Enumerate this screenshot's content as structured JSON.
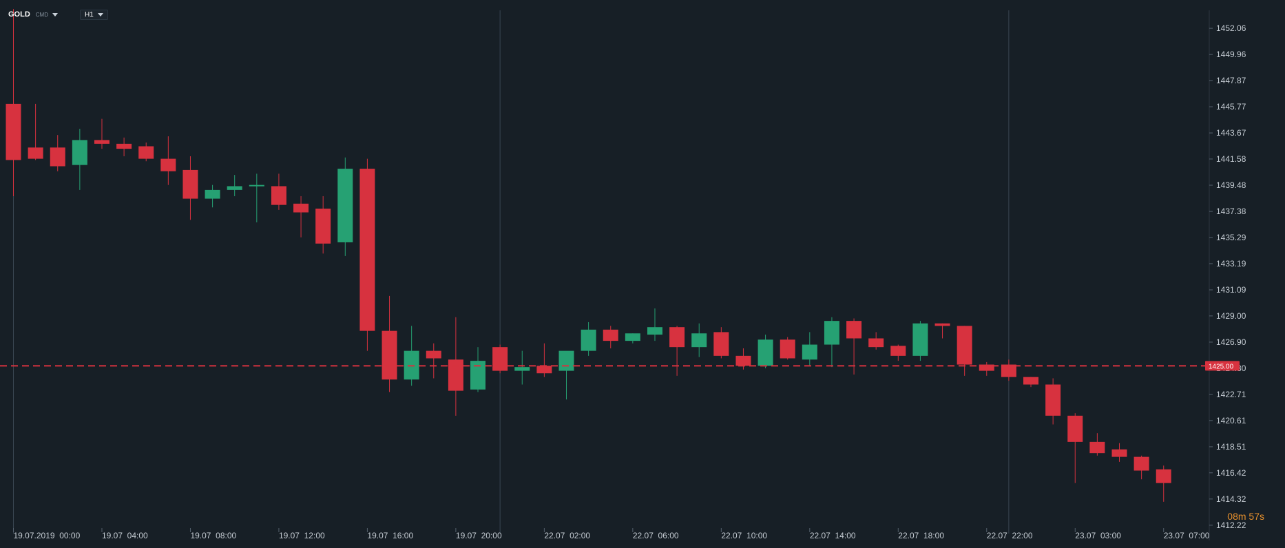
{
  "header": {
    "symbol": "GOLD",
    "symbol_type": "CMD",
    "timeframe": "H1"
  },
  "timer": {
    "minutes": "08",
    "min_unit": "m",
    "seconds": "57",
    "sec_unit": "s"
  },
  "colors": {
    "up": "#26a173",
    "down": "#d7323f",
    "background": "#171f26",
    "grid": "#2a343e",
    "current_price": "#d7323f"
  },
  "chart_data": {
    "type": "candlestick",
    "y_ticks": [
      "1452.06",
      "1449.96",
      "1447.87",
      "1445.77",
      "1443.67",
      "1441.58",
      "1439.48",
      "1437.38",
      "1435.29",
      "1433.19",
      "1431.09",
      "1429.00",
      "1426.90",
      "1424.80",
      "1422.71",
      "1420.61",
      "1418.51",
      "1416.42",
      "1414.32",
      "1412.22"
    ],
    "ylim": [
      1411.0,
      1453.5
    ],
    "x_labels": [
      {
        "i": 0,
        "label": "19.07.2019  00:00"
      },
      {
        "i": 4,
        "label": "19.07  04:00"
      },
      {
        "i": 8,
        "label": "19.07  08:00"
      },
      {
        "i": 12,
        "label": "19.07  12:00"
      },
      {
        "i": 16,
        "label": "19.07  16:00"
      },
      {
        "i": 20,
        "label": "19.07  20:00"
      },
      {
        "i": 24,
        "label": "22.07  02:00"
      },
      {
        "i": 28,
        "label": "22.07  06:00"
      },
      {
        "i": 32,
        "label": "22.07  10:00"
      },
      {
        "i": 36,
        "label": "22.07  14:00"
      },
      {
        "i": 40,
        "label": "22.07  18:00"
      },
      {
        "i": 44,
        "label": "22.07  22:00"
      },
      {
        "i": 48,
        "label": "23.07  03:00"
      },
      {
        "i": 52,
        "label": "23.07  07:00"
      }
    ],
    "session_lines_at": [
      0,
      22,
      45
    ],
    "current_price": 1425.0,
    "current_price_label": "1425.00",
    "candles": [
      {
        "o": 1446.0,
        "h": 1453.6,
        "l": 1438.6,
        "c": 1441.5
      },
      {
        "o": 1442.5,
        "h": 1446.0,
        "l": 1441.5,
        "c": 1441.6
      },
      {
        "o": 1442.5,
        "h": 1443.5,
        "l": 1440.6,
        "c": 1441.0
      },
      {
        "o": 1441.1,
        "h": 1444.0,
        "l": 1439.1,
        "c": 1443.1
      },
      {
        "o": 1443.1,
        "h": 1444.8,
        "l": 1442.4,
        "c": 1442.8
      },
      {
        "o": 1442.8,
        "h": 1443.3,
        "l": 1441.8,
        "c": 1442.4
      },
      {
        "o": 1442.6,
        "h": 1442.9,
        "l": 1441.4,
        "c": 1441.6
      },
      {
        "o": 1441.6,
        "h": 1443.4,
        "l": 1439.5,
        "c": 1440.6
      },
      {
        "o": 1440.7,
        "h": 1441.8,
        "l": 1436.7,
        "c": 1438.4
      },
      {
        "o": 1438.4,
        "h": 1439.5,
        "l": 1437.7,
        "c": 1439.1
      },
      {
        "o": 1439.1,
        "h": 1440.3,
        "l": 1438.6,
        "c": 1439.4
      },
      {
        "o": 1439.4,
        "h": 1440.4,
        "l": 1436.5,
        "c": 1439.5
      },
      {
        "o": 1439.4,
        "h": 1440.4,
        "l": 1437.5,
        "c": 1437.9
      },
      {
        "o": 1438.0,
        "h": 1438.6,
        "l": 1435.3,
        "c": 1437.3
      },
      {
        "o": 1437.6,
        "h": 1438.6,
        "l": 1434.0,
        "c": 1434.8
      },
      {
        "o": 1434.9,
        "h": 1441.7,
        "l": 1433.8,
        "c": 1440.8
      },
      {
        "o": 1440.8,
        "h": 1441.6,
        "l": 1426.2,
        "c": 1427.8
      },
      {
        "o": 1427.8,
        "h": 1430.6,
        "l": 1422.9,
        "c": 1423.9
      },
      {
        "o": 1423.9,
        "h": 1428.2,
        "l": 1423.4,
        "c": 1426.2
      },
      {
        "o": 1426.2,
        "h": 1426.8,
        "l": 1424.0,
        "c": 1425.6
      },
      {
        "o": 1425.5,
        "h": 1428.9,
        "l": 1421.0,
        "c": 1423.0
      },
      {
        "o": 1423.1,
        "h": 1426.5,
        "l": 1422.9,
        "c": 1425.4
      },
      {
        "o": 1426.5,
        "h": 1426.7,
        "l": 1424.4,
        "c": 1424.6
      },
      {
        "o": 1424.6,
        "h": 1426.2,
        "l": 1423.5,
        "c": 1424.9
      },
      {
        "o": 1425.0,
        "h": 1426.8,
        "l": 1424.1,
        "c": 1424.4
      },
      {
        "o": 1424.6,
        "h": 1426.1,
        "l": 1422.3,
        "c": 1426.2
      },
      {
        "o": 1426.2,
        "h": 1428.5,
        "l": 1425.8,
        "c": 1427.9
      },
      {
        "o": 1427.9,
        "h": 1428.2,
        "l": 1426.4,
        "c": 1427.0
      },
      {
        "o": 1427.0,
        "h": 1427.6,
        "l": 1426.8,
        "c": 1427.6
      },
      {
        "o": 1427.5,
        "h": 1429.6,
        "l": 1427.0,
        "c": 1428.1
      },
      {
        "o": 1428.1,
        "h": 1428.2,
        "l": 1424.2,
        "c": 1426.5
      },
      {
        "o": 1426.5,
        "h": 1428.4,
        "l": 1425.7,
        "c": 1427.6
      },
      {
        "o": 1427.7,
        "h": 1428.1,
        "l": 1425.6,
        "c": 1425.8
      },
      {
        "o": 1425.8,
        "h": 1426.4,
        "l": 1424.7,
        "c": 1425.0
      },
      {
        "o": 1425.0,
        "h": 1427.5,
        "l": 1424.8,
        "c": 1427.1
      },
      {
        "o": 1427.1,
        "h": 1427.3,
        "l": 1425.5,
        "c": 1425.6
      },
      {
        "o": 1425.5,
        "h": 1427.7,
        "l": 1425.0,
        "c": 1426.7
      },
      {
        "o": 1426.7,
        "h": 1428.9,
        "l": 1424.9,
        "c": 1428.6
      },
      {
        "o": 1428.6,
        "h": 1428.8,
        "l": 1424.3,
        "c": 1427.2
      },
      {
        "o": 1427.2,
        "h": 1427.7,
        "l": 1426.3,
        "c": 1426.5
      },
      {
        "o": 1426.6,
        "h": 1426.7,
        "l": 1425.4,
        "c": 1425.8
      },
      {
        "o": 1425.8,
        "h": 1428.6,
        "l": 1425.4,
        "c": 1428.4
      },
      {
        "o": 1428.4,
        "h": 1428.4,
        "l": 1427.2,
        "c": 1428.2
      },
      {
        "o": 1428.2,
        "h": 1428.2,
        "l": 1424.2,
        "c": 1425.1
      },
      {
        "o": 1425.1,
        "h": 1425.3,
        "l": 1424.2,
        "c": 1424.6
      },
      {
        "o": 1425.1,
        "h": 1425.5,
        "l": 1423.8,
        "c": 1424.1
      },
      {
        "o": 1424.1,
        "h": 1424.1,
        "l": 1423.3,
        "c": 1423.5
      },
      {
        "o": 1423.5,
        "h": 1424.0,
        "l": 1420.3,
        "c": 1421.0
      },
      {
        "o": 1421.0,
        "h": 1421.2,
        "l": 1415.6,
        "c": 1418.9
      },
      {
        "o": 1418.9,
        "h": 1419.6,
        "l": 1417.8,
        "c": 1418.0
      },
      {
        "o": 1418.3,
        "h": 1418.8,
        "l": 1417.3,
        "c": 1417.7
      },
      {
        "o": 1417.7,
        "h": 1417.8,
        "l": 1415.9,
        "c": 1416.6
      },
      {
        "o": 1416.7,
        "h": 1417.0,
        "l": 1414.1,
        "c": 1415.6
      }
    ]
  }
}
